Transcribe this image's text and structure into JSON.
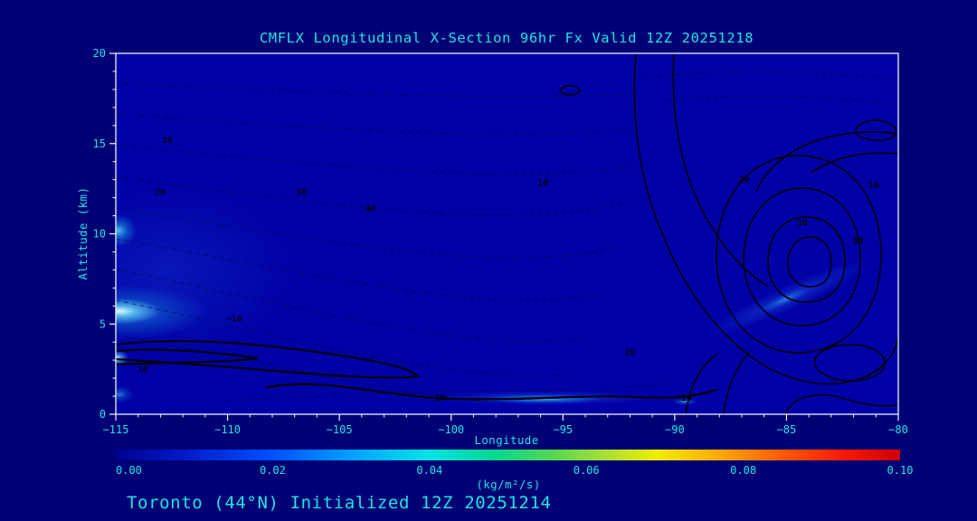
{
  "page": {
    "colors": {
      "background": "#000074",
      "plot_fill": "#0000a6",
      "text": "#1fe4e4",
      "frame": "#eef4ff",
      "contour": "#00030f",
      "highlight_cyan": "#6ef6ff"
    }
  },
  "chart_data": {
    "type": "heatmap",
    "title": "CMFLX Longitudinal X-Section 96hr  Fx Valid 12Z 20251218",
    "xlabel": "Longitude",
    "ylabel": "Altitude (km)",
    "xlim": [
      -115,
      -80
    ],
    "ylim": [
      0,
      20
    ],
    "x_ticks": [
      -115,
      -110,
      -105,
      -100,
      -95,
      -90,
      -85,
      -80
    ],
    "y_ticks": [
      0,
      5,
      10,
      15,
      20
    ],
    "grid": false,
    "legend_position": "none",
    "colorbar": {
      "label": "(kg/m²/s)",
      "min": 0.0,
      "max": 0.1,
      "tick_labels": [
        "0.00",
        "0.02",
        "0.04",
        "0.06",
        "0.08",
        "0.10"
      ],
      "gradient_stops": [
        [
          "0%",
          "#000090"
        ],
        [
          "10%",
          "#0020d0"
        ],
        [
          "20%",
          "#0050ff"
        ],
        [
          "30%",
          "#00a0ff"
        ],
        [
          "40%",
          "#00e4e4"
        ],
        [
          "48%",
          "#00d890"
        ],
        [
          "56%",
          "#58d850"
        ],
        [
          "63%",
          "#b0e030"
        ],
        [
          "69%",
          "#eeee00"
        ],
        [
          "77%",
          "#ffa800"
        ],
        [
          "86%",
          "#ff5000"
        ],
        [
          "93%",
          "#f51800"
        ],
        [
          "100%",
          "#cc0000"
        ]
      ]
    },
    "contour_labels": [
      {
        "value": "10",
        "lon": -112.7,
        "alt": 15.2
      },
      {
        "value": "20",
        "lon": -113.0,
        "alt": 12.3
      },
      {
        "value": "30",
        "lon": -106.7,
        "alt": 12.3
      },
      {
        "value": "40",
        "lon": -103.6,
        "alt": 11.4
      },
      {
        "value": "10",
        "lon": -95.9,
        "alt": 12.8
      },
      {
        "value": "20",
        "lon": -86.9,
        "alt": 13.0
      },
      {
        "value": "10",
        "lon": -81.1,
        "alt": 12.7
      },
      {
        "value": "30",
        "lon": -84.3,
        "alt": 10.6
      },
      {
        "value": "50",
        "lon": -81.8,
        "alt": 9.6
      },
      {
        "value": "10",
        "lon": -113.8,
        "alt": 2.5
      },
      {
        "value": "-10",
        "lon": -109.7,
        "alt": 5.3
      },
      {
        "value": "20",
        "lon": -92.0,
        "alt": 3.4
      },
      {
        "value": "10",
        "lon": -100.5,
        "alt": 0.9
      },
      {
        "value": "-10",
        "lon": -89.6,
        "alt": 0.9
      }
    ],
    "footer": "Toronto (44°N) Initialized 12Z 20251214"
  }
}
